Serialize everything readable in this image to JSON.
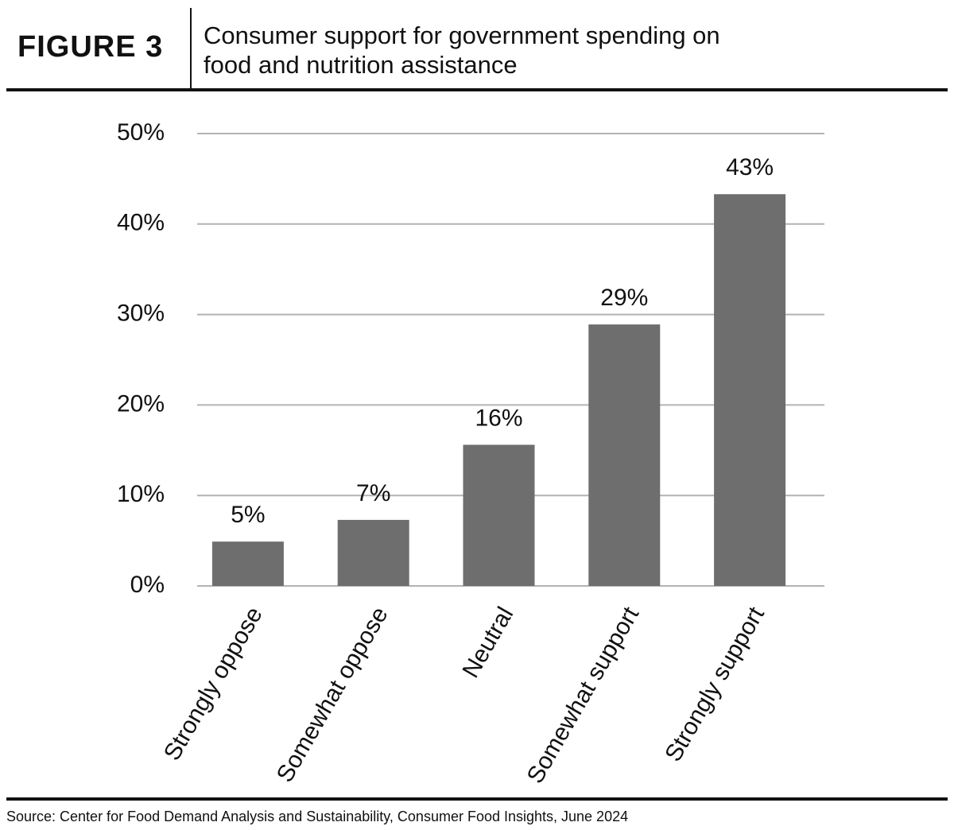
{
  "header": {
    "figure_label": "FIGURE 3",
    "title": "Consumer support for government spending on food and nutrition assistance"
  },
  "chart_data": {
    "type": "bar",
    "categories": [
      "Strongly oppose",
      "Somewhat oppose",
      "Neutral",
      "Somewhat support",
      "Strongly support"
    ],
    "values": [
      4.9,
      7.3,
      15.6,
      28.9,
      43.3
    ],
    "value_labels": [
      "5%",
      "7%",
      "16%",
      "29%",
      "43%"
    ],
    "color": "#6e6e6e",
    "ylim": [
      0,
      50
    ],
    "yticks": [
      {
        "value": 0,
        "label": "0%"
      },
      {
        "value": 10,
        "label": "10%"
      },
      {
        "value": 20,
        "label": "20%"
      },
      {
        "value": 30,
        "label": "30%"
      },
      {
        "value": 40,
        "label": "40%"
      },
      {
        "value": 50,
        "label": "50%"
      }
    ],
    "grid": true
  },
  "source": "Source: Center for Food Demand Analysis and Sustainability, Consumer Food Insights, June 2024"
}
